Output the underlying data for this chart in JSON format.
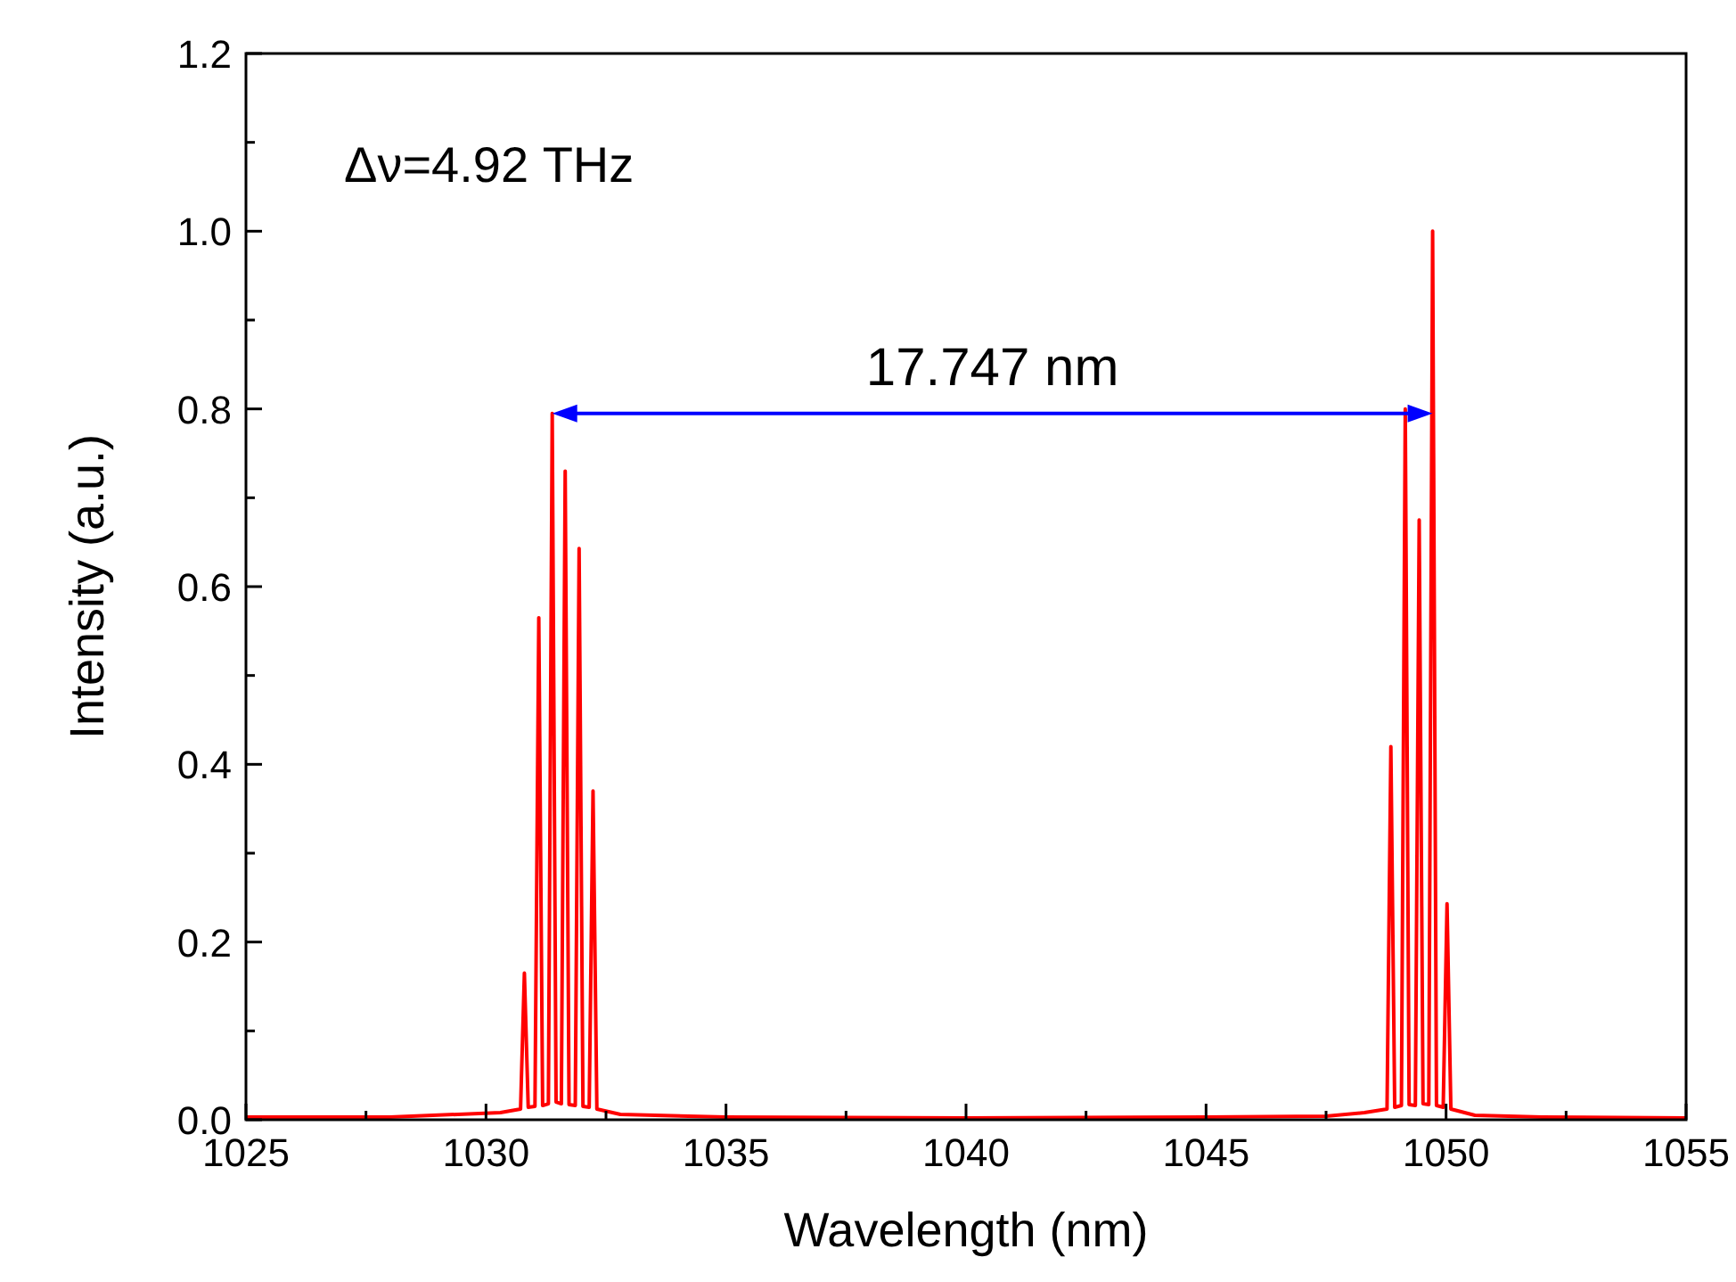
{
  "chart_data": {
    "type": "line",
    "xlabel": "Wavelength (nm)",
    "ylabel": "Intensity (a.u.)",
    "series": [
      {
        "color": "#ff0000",
        "x": [
          1025,
          1028,
          1030.3,
          1030.72,
          1030.8,
          1030.88,
          1031.02,
          1031.1,
          1031.18,
          1031.3,
          1031.38,
          1031.46,
          1031.57,
          1031.65,
          1031.73,
          1031.86,
          1031.94,
          1032.02,
          1032.15,
          1032.23,
          1032.31,
          1032.8,
          1035,
          1040,
          1045,
          1047.5,
          1048.3,
          1048.77,
          1048.85,
          1048.93,
          1049.07,
          1049.15,
          1049.23,
          1049.36,
          1049.44,
          1049.52,
          1049.64,
          1049.72,
          1049.8,
          1049.94,
          1050.02,
          1050.1,
          1050.6,
          1052,
          1055
        ],
        "values": [
          0.003,
          0.003,
          0.008,
          0.012,
          0.165,
          0.014,
          0.015,
          0.565,
          0.016,
          0.018,
          0.795,
          0.02,
          0.018,
          0.73,
          0.017,
          0.016,
          0.643,
          0.015,
          0.014,
          0.37,
          0.012,
          0.006,
          0.003,
          0.002,
          0.003,
          0.004,
          0.008,
          0.012,
          0.42,
          0.014,
          0.016,
          0.8,
          0.017,
          0.016,
          0.675,
          0.018,
          0.017,
          1.0,
          0.016,
          0.014,
          0.243,
          0.012,
          0.005,
          0.003,
          0.002
        ]
      }
    ],
    "xlim": [
      1025,
      1055
    ],
    "ylim": [
      0,
      1.2
    ],
    "xticks": [
      1025,
      {
        "value": 1027.5,
        "label": null
      },
      1030,
      {
        "value": 1032.5,
        "label": null
      },
      1035,
      {
        "value": 1037.5,
        "label": null
      },
      1040,
      {
        "value": 1042.5,
        "label": null
      },
      1045,
      {
        "value": 1047.5,
        "label": null
      },
      1050,
      {
        "value": 1052.5,
        "label": null
      },
      1055
    ],
    "yticks": [
      {
        "value": 0,
        "label": "0.0"
      },
      {
        "value": 0.1,
        "label": null
      },
      {
        "value": 0.2,
        "label": "0.2"
      },
      {
        "value": 0.3,
        "label": null
      },
      {
        "value": 0.4,
        "label": "0.4"
      },
      {
        "value": 0.5,
        "label": null
      },
      {
        "value": 0.6,
        "label": "0.6"
      },
      {
        "value": 0.7,
        "label": null
      },
      {
        "value": 0.8,
        "label": "0.8"
      },
      {
        "value": 0.9,
        "label": null
      },
      {
        "value": 1.0,
        "label": "1.0"
      },
      {
        "value": 1.1,
        "label": null
      },
      {
        "value": 1.2,
        "label": "1.2"
      }
    ],
    "annotations": [
      "Δν=4.92 THz",
      "17.747 nm"
    ],
    "grid": false,
    "line_style": "solid"
  }
}
